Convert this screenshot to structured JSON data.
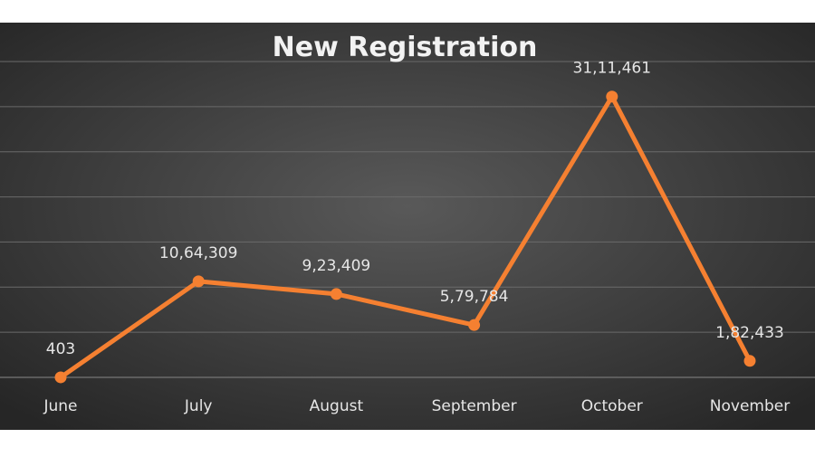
{
  "chart_data": {
    "type": "line",
    "title": "New Registration",
    "categories": [
      "June",
      "July",
      "August",
      "September",
      "October",
      "November"
    ],
    "series": [
      {
        "values": [
          403,
          1064309,
          923409,
          579784,
          3111461,
          182433
        ],
        "data_labels": [
          "403",
          "10,64,309",
          "9,23,409",
          "5,79,784",
          "31,11,461",
          "1,82,433"
        ]
      }
    ],
    "xlabel": "",
    "ylabel": "",
    "ylim": [
      0,
      3500000
    ],
    "y_gridline_step": 500000,
    "grid": true,
    "legend": "none",
    "y_axis_labels": false,
    "colors": {
      "line": "#f58031",
      "gridline": "#6a6a6a",
      "background_center": "#595959",
      "background_edge": "#262626",
      "text": "#e6e6e6"
    }
  }
}
